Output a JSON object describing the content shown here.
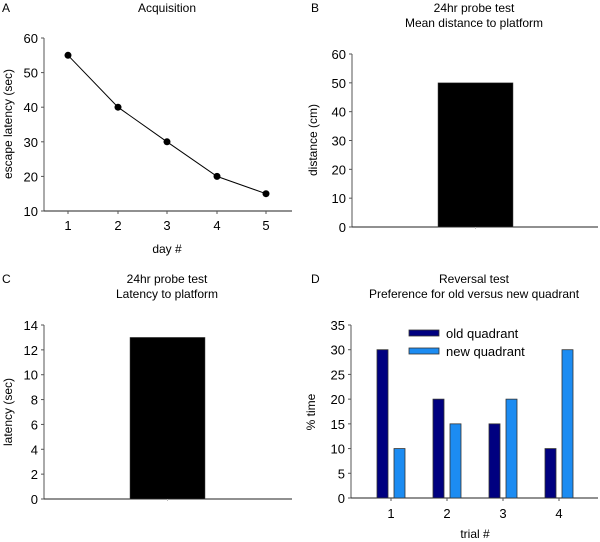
{
  "colors": {
    "line": "#000000",
    "solid_bar": "#000000",
    "old_quadrant": "#000080",
    "new_quadrant": "#1c8cf2",
    "bar_edge": "#333333"
  },
  "chart_data": [
    {
      "panel": "A",
      "type": "line",
      "title": "Acquisition",
      "xlabel": "day #",
      "ylabel": "escape latency (sec)",
      "x": [
        1,
        2,
        3,
        4,
        5
      ],
      "values": [
        55,
        40,
        30,
        20,
        15
      ],
      "xticks": [
        "1",
        "2",
        "3",
        "4",
        "5"
      ],
      "yticks": [
        "10",
        "20",
        "30",
        "40",
        "50",
        "60"
      ],
      "ylim": [
        10,
        60
      ],
      "grid": false
    },
    {
      "panel": "B",
      "type": "bar",
      "title": [
        "24hr probe test",
        "Mean distance to platform"
      ],
      "xlabel": "",
      "ylabel": "distance (cm)",
      "categories": [
        ""
      ],
      "values": [
        50
      ],
      "yticks": [
        "0",
        "10",
        "20",
        "30",
        "40",
        "50",
        "60"
      ],
      "ylim": [
        0,
        60
      ],
      "grid": false
    },
    {
      "panel": "C",
      "type": "bar",
      "title": [
        "24hr probe test",
        "Latency to platform"
      ],
      "xlabel": "",
      "ylabel": "latency (sec)",
      "categories": [
        ""
      ],
      "values": [
        13
      ],
      "yticks": [
        "0",
        "2",
        "4",
        "6",
        "8",
        "10",
        "12",
        "14"
      ],
      "ylim": [
        0,
        14
      ],
      "grid": false
    },
    {
      "panel": "D",
      "type": "bar",
      "title": [
        "Reversal test",
        "Preference for old versus new quadrant"
      ],
      "xlabel": "trial #",
      "ylabel": "% time",
      "categories": [
        "1",
        "2",
        "3",
        "4"
      ],
      "series": [
        {
          "name": "old quadrant",
          "values": [
            30,
            20,
            15,
            10
          ]
        },
        {
          "name": "new quadrant",
          "values": [
            10,
            15,
            20,
            30
          ]
        }
      ],
      "yticks": [
        "0",
        "5",
        "10",
        "15",
        "20",
        "25",
        "30",
        "35"
      ],
      "ylim": [
        0,
        35
      ],
      "legend": "top-center",
      "grid": false
    }
  ]
}
